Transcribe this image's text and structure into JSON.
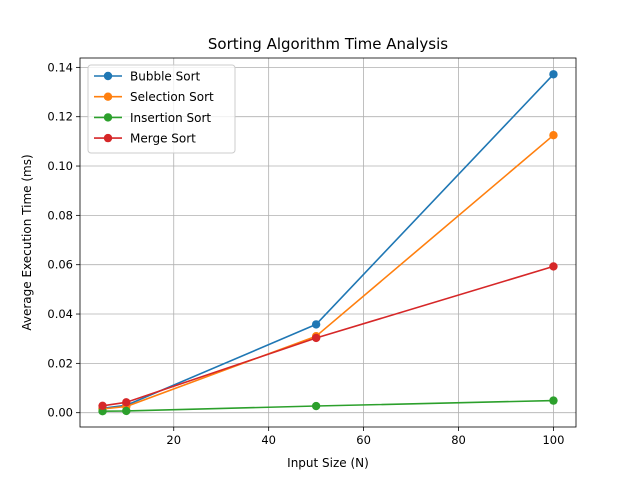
{
  "chart_data": {
    "type": "line",
    "title": "Sorting Algorithm Time Analysis",
    "xlabel": "Input Size (N)",
    "ylabel": "Average Execution Time (ms)",
    "xlim": [
      0.25,
      104.75
    ],
    "ylim": [
      -0.0058,
      0.1438
    ],
    "x": [
      5,
      10,
      50,
      100
    ],
    "x_ticks": [
      20,
      40,
      60,
      80,
      100
    ],
    "x_tick_labels": [
      "20",
      "40",
      "60",
      "80",
      "100"
    ],
    "y_ticks": [
      0.0,
      0.02,
      0.04,
      0.06,
      0.08,
      0.1,
      0.12,
      0.14
    ],
    "y_tick_labels": [
      "0.00",
      "0.02",
      "0.04",
      "0.06",
      "0.08",
      "0.10",
      "0.12",
      "0.14"
    ],
    "grid": true,
    "legend_position": "upper-left",
    "marker": "circle",
    "series": [
      {
        "name": "Bubble Sort",
        "color": "#1f77b4",
        "values": [
          0.0018,
          0.003,
          0.0358,
          0.1372
        ]
      },
      {
        "name": "Selection Sort",
        "color": "#ff7f0e",
        "values": [
          0.0015,
          0.0025,
          0.031,
          0.1125
        ]
      },
      {
        "name": "Insertion Sort",
        "color": "#2ca02c",
        "values": [
          0.0006,
          0.0007,
          0.0027,
          0.0049
        ]
      },
      {
        "name": "Merge Sort",
        "color": "#d62728",
        "values": [
          0.0028,
          0.0042,
          0.0303,
          0.0593
        ]
      }
    ]
  }
}
